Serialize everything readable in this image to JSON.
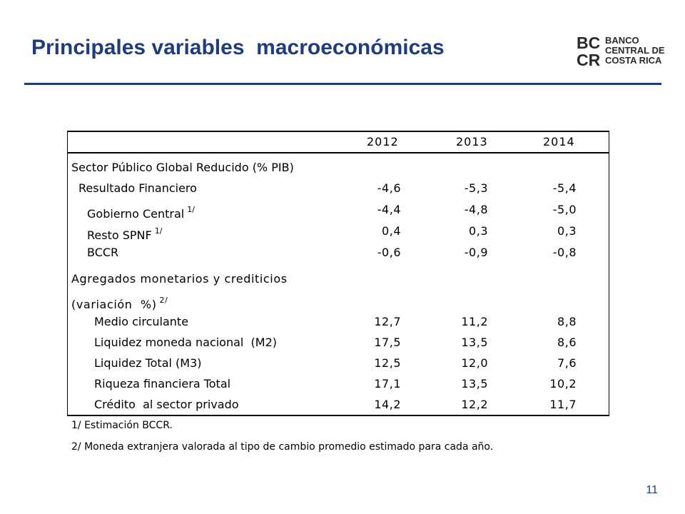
{
  "title": "Principales variables  macroeconómicas",
  "logo": {
    "mark_text": "BC CR",
    "lines": [
      "BANCO",
      "CENTRAL DE",
      "COSTA RICA"
    ]
  },
  "colors": {
    "title": "#1f3d7a",
    "rule": "#1f3d7a",
    "logo_text": "#2a2a2a"
  },
  "table": {
    "years": [
      "2012",
      "2013",
      "2014"
    ],
    "section1": {
      "heading": "Sector Público Global Reducido (% PIB)",
      "rows": [
        {
          "label": "Resultado Financiero",
          "footnote": "",
          "values": [
            "-4,6",
            "-5,3",
            "-5,4"
          ]
        },
        {
          "label": "Gobierno Central",
          "footnote": "1/",
          "values": [
            "-4,4",
            "-4,8",
            "-5,0"
          ]
        },
        {
          "label": "Resto SPNF",
          "footnote": "1/",
          "values": [
            "0,4",
            "0,3",
            "0,3"
          ]
        },
        {
          "label": "BCCR",
          "footnote": "",
          "values": [
            "-0,6",
            "-0,9",
            "-0,8"
          ]
        }
      ]
    },
    "section2": {
      "heading_line1": "Agregados monetarios y crediticios",
      "heading_line2": "(variación  %)",
      "heading_footnote": "2/",
      "rows": [
        {
          "label": "Medio circulante",
          "values": [
            "12,7",
            "11,2",
            "8,8"
          ]
        },
        {
          "label": "Liquidez moneda nacional  (M2)",
          "values": [
            "17,5",
            "13,5",
            "8,6"
          ]
        },
        {
          "label": "Liquidez Total (M3)",
          "values": [
            "12,5",
            "12,0",
            "7,6"
          ]
        },
        {
          "label": "Riqueza financiera Total",
          "values": [
            "17,1",
            "13,5",
            "10,2"
          ]
        },
        {
          "label": "Crédito  al sector privado",
          "values": [
            "14,2",
            "12,2",
            "11,7"
          ]
        }
      ]
    },
    "notes": [
      "1/ Estimación BCCR.",
      "2/ Moneda extranjera valorada al tipo de cambio promedio estimado para cada año."
    ]
  },
  "page_number": "11"
}
